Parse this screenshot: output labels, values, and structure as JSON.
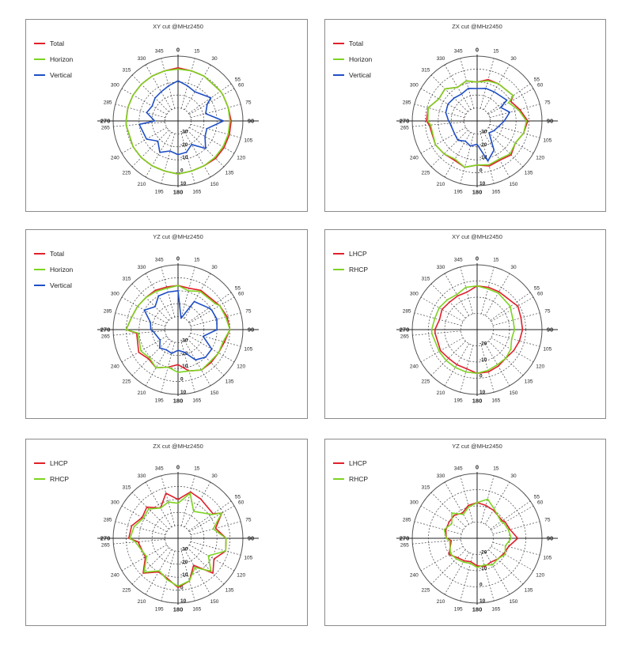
{
  "colors": {
    "total": "#e0202a",
    "horizon": "#7ed321",
    "vertical": "#1f4fc6",
    "lhcp": "#e0202a",
    "rhcp": "#7ed321"
  },
  "chart_data": [
    {
      "type": "polar-line",
      "title": "XY cut @MHz2450",
      "angle_ticks": [
        0,
        15,
        30,
        55,
        60,
        75,
        90,
        105,
        120,
        135,
        150,
        165,
        180,
        195,
        210,
        225,
        240,
        265,
        270,
        285,
        300,
        315,
        330,
        345
      ],
      "radial_labels": [
        "-30",
        "-20",
        "-10",
        "0",
        "10"
      ],
      "rlim": [
        -40,
        10
      ],
      "legend": "top-left",
      "series": [
        {
          "name": "Total",
          "color_key": "total",
          "values": [
            1,
            0,
            0,
            0,
            0,
            0,
            1,
            1,
            1,
            1,
            0,
            0,
            1,
            0,
            0,
            0,
            0,
            0,
            0,
            0,
            0,
            0,
            0,
            0
          ]
        },
        {
          "name": "Horizon",
          "color_key": "horizon",
          "values": [
            0,
            0,
            0,
            0,
            0,
            0,
            0,
            0,
            0,
            0,
            0,
            0,
            1,
            0,
            0,
            0,
            0,
            0,
            0,
            0,
            0,
            0,
            0,
            0
          ]
        },
        {
          "name": "Vertical",
          "color_key": "vertical",
          "values": [
            -9,
            -12,
            -14,
            -9,
            -14,
            -18,
            -5,
            -17,
            -16,
            -10,
            -19,
            -15,
            -14,
            -16,
            -12,
            -18,
            -12,
            -10,
            -22,
            -15,
            -17,
            -15,
            -14,
            -12
          ]
        }
      ]
    },
    {
      "type": "polar-line",
      "title": "ZX cut @MHz2450",
      "angle_ticks": [
        0,
        15,
        30,
        55,
        60,
        75,
        90,
        105,
        120,
        135,
        150,
        165,
        180,
        195,
        210,
        225,
        240,
        265,
        270,
        285,
        300,
        315,
        330,
        345
      ],
      "radial_labels": [
        "-30",
        "-20",
        "-10",
        "0",
        "10"
      ],
      "rlim": [
        -40,
        10
      ],
      "legend": "top-left",
      "series": [
        {
          "name": "Total",
          "color_key": "total",
          "values": [
            -10,
            -7,
            -7,
            -6,
            -10,
            -6,
            -1,
            -3,
            -6,
            -3,
            -5,
            -4,
            -6,
            -3,
            -5,
            -4,
            -3,
            -3,
            -1,
            -1,
            -6,
            -5,
            -10,
            -8
          ]
        },
        {
          "name": "Horizon",
          "color_key": "horizon",
          "values": [
            -10,
            -8,
            -7,
            -6,
            -12,
            -7,
            -2,
            -3,
            -6,
            -4,
            -6,
            -5,
            -6,
            -3,
            -6,
            -4,
            -3,
            -4,
            -2,
            -1,
            -6,
            -5,
            -10,
            -8
          ]
        },
        {
          "name": "Vertical",
          "color_key": "vertical",
          "values": [
            -15,
            -14,
            -14,
            -12,
            -19,
            -14,
            -19,
            -23,
            -25,
            -27,
            -14,
            -8,
            -22,
            -20,
            -22,
            -19,
            -20,
            -19,
            -18,
            -15,
            -14,
            -15,
            -16,
            -14
          ]
        }
      ]
    },
    {
      "type": "polar-line",
      "title": "YZ cut @MHz2450",
      "angle_ticks": [
        0,
        15,
        30,
        55,
        60,
        75,
        90,
        105,
        120,
        135,
        150,
        165,
        180,
        195,
        210,
        225,
        240,
        265,
        270,
        285,
        300,
        315,
        330,
        345
      ],
      "radial_labels": [
        "-30",
        "-20",
        "-10",
        "0",
        "10"
      ],
      "rlim": [
        -40,
        10
      ],
      "legend": "top-left",
      "series": [
        {
          "name": "Total",
          "color_key": "total",
          "values": [
            -6,
            -7,
            -5,
            -4,
            -3,
            -1,
            0,
            -3,
            -4,
            -4,
            -4,
            -7,
            -13,
            -10,
            -6,
            -8,
            -5,
            -8,
            0,
            -3,
            -4,
            -5,
            -5,
            -6
          ]
        },
        {
          "name": "Horizon",
          "color_key": "horizon",
          "values": [
            -6,
            -9,
            -6,
            -5,
            -3,
            -2,
            0,
            -4,
            -4,
            -5,
            -4,
            -7,
            -7,
            -10,
            -6,
            -9,
            -7,
            -9,
            0,
            -3,
            -4,
            -5,
            -6,
            -7
          ]
        },
        {
          "name": "Vertical",
          "color_key": "vertical",
          "values": [
            -10,
            -31,
            -15,
            -11,
            -10,
            -9,
            -10,
            -20,
            -10,
            -10,
            -13,
            -22,
            -24,
            -21,
            -22,
            -20,
            -24,
            -21,
            -19,
            -18,
            -10,
            -15,
            -10,
            -10
          ]
        }
      ]
    },
    {
      "type": "polar-line",
      "title": "XY cut @MHz2450",
      "angle_ticks": [
        0,
        15,
        30,
        55,
        60,
        75,
        90,
        105,
        120,
        135,
        150,
        165,
        180,
        195,
        210,
        225,
        240,
        265,
        270,
        285,
        300,
        315,
        330,
        345
      ],
      "radial_labels": [
        "-20",
        "-10",
        "0",
        "10"
      ],
      "rlim": [
        -30,
        10
      ],
      "legend": "top-left",
      "series": [
        {
          "name": "LHCP",
          "color_key": "lhcp",
          "values": [
            -3,
            -3,
            -3,
            -2,
            -1,
            -2,
            -2,
            -3,
            -4,
            -5,
            -4,
            -3,
            -3,
            -5,
            -5,
            -5,
            -4,
            -4,
            -4,
            -6,
            -5,
            -6,
            -6,
            -6
          ]
        },
        {
          "name": "RHCP",
          "color_key": "rhcp",
          "values": [
            -3,
            -4,
            -4,
            -5,
            -6,
            -7,
            -7,
            -8,
            -6,
            -5,
            -5,
            -4,
            -3,
            -3,
            -3,
            -3,
            -3,
            -2,
            -2,
            -3,
            -3,
            -4,
            -5,
            -3
          ]
        }
      ]
    },
    {
      "type": "polar-line",
      "title": "ZX cut @MHz2450",
      "angle_ticks": [
        0,
        15,
        30,
        55,
        60,
        75,
        90,
        105,
        120,
        135,
        150,
        165,
        180,
        195,
        210,
        225,
        240,
        265,
        270,
        285,
        300,
        315,
        330,
        345
      ],
      "radial_labels": [
        "-30",
        "-20",
        "-10",
        "0",
        "10"
      ],
      "rlim": [
        -40,
        10
      ],
      "legend": "top-left",
      "series": [
        {
          "name": "LHCP",
          "color_key": "lhcp",
          "values": [
            -10,
            -3,
            -5,
            -7,
            -1,
            -10,
            -3,
            -2,
            -8,
            -2,
            -16,
            -6,
            -2,
            -8,
            -10,
            -2,
            -11,
            -9,
            -2,
            -3,
            -8,
            -6,
            -13,
            -4
          ]
        },
        {
          "name": "RHCP",
          "color_key": "rhcp",
          "values": [
            -13,
            -4,
            -16,
            -8,
            -1,
            -12,
            -3,
            -2,
            -13,
            -4,
            -14,
            -6,
            -3,
            -7,
            -11,
            -3,
            -12,
            -7,
            -3,
            -5,
            -9,
            -8,
            -13,
            -11
          ]
        }
      ]
    },
    {
      "type": "polar-line",
      "title": "YZ cut @MHz2450",
      "angle_ticks": [
        0,
        15,
        30,
        55,
        60,
        75,
        90,
        105,
        120,
        135,
        150,
        165,
        180,
        195,
        210,
        225,
        240,
        265,
        270,
        285,
        300,
        315,
        330,
        345
      ],
      "radial_labels": [
        "-20",
        "-10",
        "0",
        "10"
      ],
      "rlim": [
        -30,
        10
      ],
      "legend": "top-left",
      "series": [
        {
          "name": "LHCP",
          "color_key": "lhcp",
          "values": [
            -8,
            -9,
            -10,
            -11,
            -10,
            -9,
            -5,
            -10,
            -11,
            -12,
            -13,
            -12,
            -13,
            -15,
            -14,
            -13,
            -10,
            -14,
            -11,
            -10,
            -10,
            -10,
            -12,
            -9
          ]
        },
        {
          "name": "RHCP",
          "color_key": "rhcp",
          "values": [
            -8,
            -5,
            -9,
            -12,
            -11,
            -10,
            -9,
            -12,
            -10,
            -12,
            -11,
            -13,
            -12,
            -14,
            -13,
            -12,
            -11,
            -13,
            -11,
            -9,
            -12,
            -8,
            -13,
            -10
          ]
        }
      ]
    }
  ]
}
